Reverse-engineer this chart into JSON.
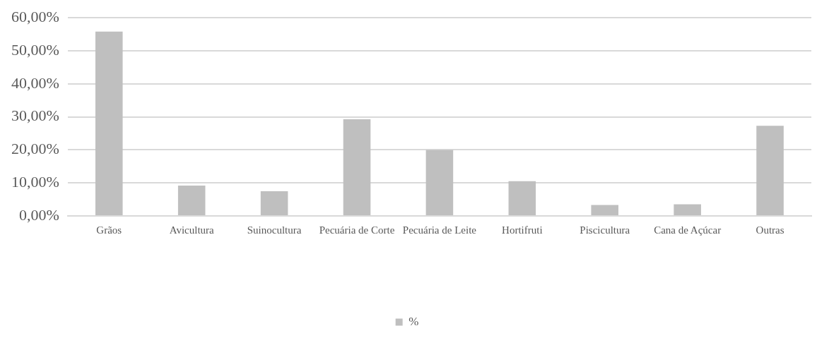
{
  "chart_data": {
    "type": "bar",
    "categories": [
      "Grãos",
      "Avicultura",
      "Suinocultura",
      "Pecuária de Corte",
      "Pecuária de Leite",
      "Hortifruti",
      "Piscicultura",
      "Cana de Açúcar",
      "Outras"
    ],
    "series": [
      {
        "name": "%",
        "color": "#bfbfbf",
        "values": [
          55.8,
          9.2,
          7.5,
          29.3,
          20.0,
          10.5,
          3.3,
          3.5,
          27.3
        ]
      }
    ],
    "ylim": [
      0,
      60
    ],
    "yticks": [
      {
        "value": 0,
        "label": "0,00%"
      },
      {
        "value": 10,
        "label": "10,00%"
      },
      {
        "value": 20,
        "label": "20,00%"
      },
      {
        "value": 30,
        "label": "30,00%"
      },
      {
        "value": 40,
        "label": "40,00%"
      },
      {
        "value": 50,
        "label": "50,00%"
      },
      {
        "value": 60,
        "label": "60,00%"
      }
    ],
    "grid": "y",
    "legend": "bottom"
  }
}
